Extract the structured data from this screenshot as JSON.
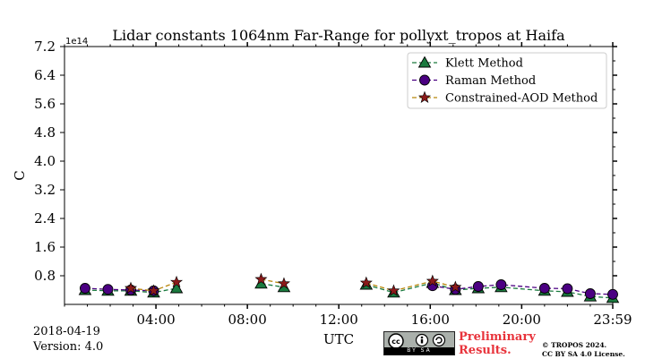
{
  "chart_data": {
    "type": "scatter",
    "title": "Lidar constants 1064nm Far-Range for pollyxt_tropos at Haifa",
    "xlabel": "UTC",
    "ylabel": "C",
    "y_multiplier_label": "1e14",
    "xlim": [
      0,
      1439
    ],
    "ylim": [
      0,
      7.2
    ],
    "x_ticks": [
      240,
      480,
      720,
      960,
      1200,
      1439
    ],
    "x_tick_labels": [
      "04:00",
      "08:00",
      "12:00",
      "16:00",
      "20:00",
      "23:59"
    ],
    "y_ticks": [
      0.8,
      1.6,
      2.4,
      3.2,
      4.0,
      4.8,
      5.6,
      6.4,
      7.2
    ],
    "y_tick_labels": [
      "0.8",
      "1.6",
      "2.4",
      "3.2",
      "4.0",
      "4.8",
      "5.6",
      "6.4",
      "7.2"
    ],
    "legend_position": "top-right",
    "series": [
      {
        "name": "Klett Method",
        "marker": "triangle",
        "color": "#1a7a3e",
        "line_color": "#1a7a3e",
        "points": [
          {
            "x": 54,
            "y": 0.4
          },
          {
            "x": 114,
            "y": 0.38
          },
          {
            "x": 174,
            "y": 0.38
          },
          {
            "x": 234,
            "y": 0.33
          },
          {
            "x": 294,
            "y": 0.45
          },
          {
            "x": 516,
            "y": 0.58
          },
          {
            "x": 576,
            "y": 0.48
          },
          {
            "x": 792,
            "y": 0.55
          },
          {
            "x": 864,
            "y": 0.33
          },
          {
            "x": 966,
            "y": 0.6
          },
          {
            "x": 1026,
            "y": 0.4
          },
          {
            "x": 1086,
            "y": 0.45
          },
          {
            "x": 1146,
            "y": 0.48
          },
          {
            "x": 1260,
            "y": 0.38
          },
          {
            "x": 1320,
            "y": 0.35
          },
          {
            "x": 1380,
            "y": 0.22
          },
          {
            "x": 1440,
            "y": 0.18
          }
        ]
      },
      {
        "name": "Raman Method",
        "marker": "circle",
        "color": "#4b0082",
        "line_color": "#4b0082",
        "points": [
          {
            "x": 54,
            "y": 0.45
          },
          {
            "x": 114,
            "y": 0.42
          },
          {
            "x": 174,
            "y": 0.4
          },
          {
            "x": 234,
            "y": 0.38
          },
          {
            "x": 966,
            "y": 0.52
          },
          {
            "x": 1026,
            "y": 0.42
          },
          {
            "x": 1086,
            "y": 0.5
          },
          {
            "x": 1146,
            "y": 0.55
          },
          {
            "x": 1260,
            "y": 0.45
          },
          {
            "x": 1320,
            "y": 0.44
          },
          {
            "x": 1380,
            "y": 0.3
          },
          {
            "x": 1440,
            "y": 0.28
          }
        ]
      },
      {
        "name": "Constrained-AOD Method",
        "marker": "star",
        "color": "#8b1a1a",
        "line_color": "#b8860b",
        "points": [
          {
            "x": 174,
            "y": 0.45
          },
          {
            "x": 234,
            "y": 0.38
          },
          {
            "x": 294,
            "y": 0.62
          },
          {
            "x": 516,
            "y": 0.7
          },
          {
            "x": 576,
            "y": 0.58
          },
          {
            "x": 792,
            "y": 0.6
          },
          {
            "x": 864,
            "y": 0.38
          },
          {
            "x": 966,
            "y": 0.65
          },
          {
            "x": 1026,
            "y": 0.48
          }
        ]
      }
    ]
  },
  "footer": {
    "date": "2018-04-19",
    "version": "Version: 4.0",
    "cc_label": "BY SA",
    "preliminary_line1": "Preliminary",
    "preliminary_line2": "Results.",
    "license_line1": "© TROPOS 2024.",
    "license_line2": "CC BY SA 4.0 License."
  }
}
